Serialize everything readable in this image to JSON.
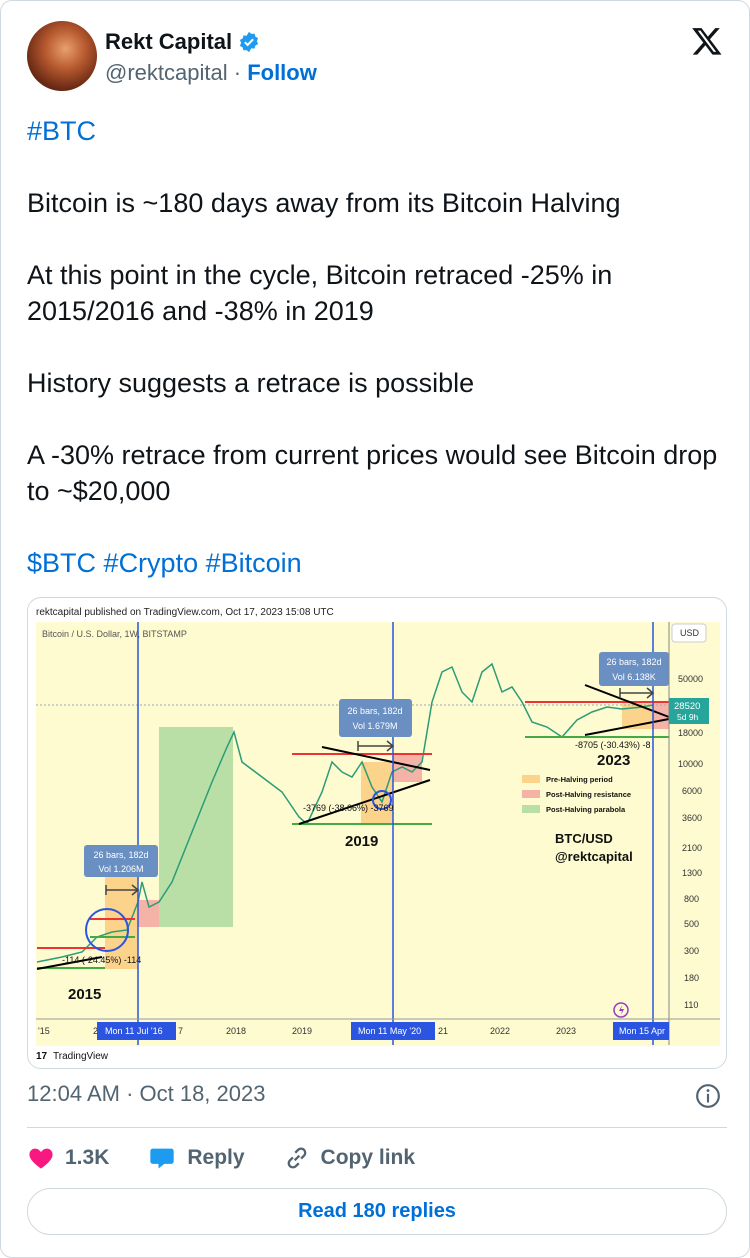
{
  "author": {
    "name": "Rekt Capital",
    "handle": "@rektcapital",
    "separator": "·",
    "follow_label": "Follow",
    "verified": true
  },
  "tweet": {
    "lines": [
      "#BTC",
      "Bitcoin is ~180 days away from its Bitcoin Halving",
      "At this point in the cycle, Bitcoin retraced -25% in 2015/2016 and -38% in 2019",
      "History suggests a retrace is possible",
      "A -30% retrace from current prices would see Bitcoin drop to ~$20,000"
    ],
    "hashtags": [
      "$BTC",
      "#Crypto",
      "#Bitcoin"
    ]
  },
  "chart": {
    "published": "rektcapital published on TradingView.com, Oct 17, 2023 15:08 UTC",
    "symbol": "Bitcoin / U.S. Dollar, 1W, BITSTAMP",
    "currency": "USD",
    "price_ticks": [
      "50000",
      "18000",
      "10000",
      "6000",
      "3600",
      "2100",
      "1300",
      "800",
      "500",
      "300",
      "180",
      "110"
    ],
    "current_price": "28520",
    "countdown": "5d 9h",
    "time_ticks": [
      "'15",
      "2",
      "7",
      "2018",
      "2019",
      "21",
      "2022",
      "2023"
    ],
    "halving_dates": [
      "Mon 11 Jul '16",
      "Mon 11 May '20",
      "Mon 15 Apr"
    ],
    "measures": [
      {
        "bars": "26 bars, 182d",
        "vol": "Vol 1.206M"
      },
      {
        "bars": "26 bars, 182d",
        "vol": "Vol 1.679M"
      },
      {
        "bars": "26 bars, 182d",
        "vol": "Vol 6.138K"
      }
    ],
    "retraces": [
      "-114 (-24.45%) -114",
      "-3769 (-38.06%) -3769",
      "-8705 (-30.43%) -8"
    ],
    "years": [
      "2015",
      "2019",
      "2023"
    ],
    "legend": [
      {
        "label": "Pre-Halving period",
        "color": "#fbd38a"
      },
      {
        "label": "Post-Halving resistance",
        "color": "#f5b3a8"
      },
      {
        "label": "Post-Halving parabola",
        "color": "#b9dfa6"
      }
    ],
    "watermark": [
      "BTC/USD",
      "@rektcapital"
    ],
    "brand": "TradingView"
  },
  "footer": {
    "timestamp": "12:04 AM · Oct 18, 2023",
    "likes": "1.3K",
    "reply_label": "Reply",
    "copy_label": "Copy link",
    "read_replies": "Read 180 replies"
  },
  "colors": {
    "link": "#006fd6",
    "like": "#f91880",
    "reply": "#1d9bf0",
    "halving_line": "#2b55e0",
    "measure_box": "#6a8fc3"
  }
}
